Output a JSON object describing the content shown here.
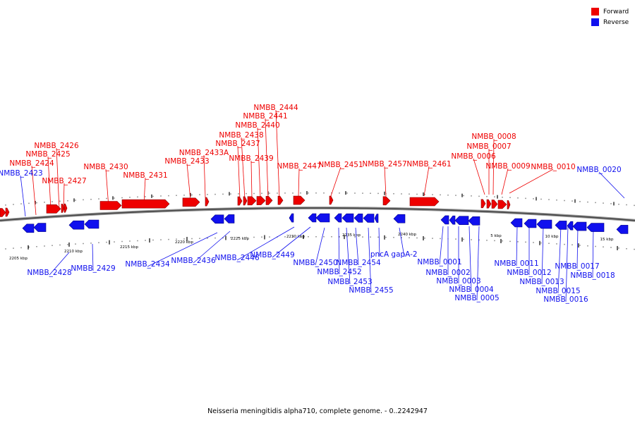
{
  "legend": {
    "forward_label": "Forward",
    "reverse_label": "Reverse",
    "forward_color": "#ee0000",
    "reverse_color": "#1010ee"
  },
  "caption": "Neisseria meningitidis alpha710, complete genome. - 0..2242947",
  "scale_labels": [
    "2205 kbp",
    "2210 kbp",
    "2215 kbp",
    "2220 kbp",
    "2225 kbp",
    "2230 kbp",
    "2235 kbp",
    "2240 kbp",
    "5 kbp",
    "10 kbp",
    "15 kbp"
  ],
  "forward_genes": [
    "NMBB_2424",
    "NMBB_2425",
    "NMBB_2426",
    "NMBB_2427",
    "NMBB_2430",
    "NMBB_2431",
    "NMBB_2433",
    "NMBB_2433A",
    "NMBB_2437",
    "NMBB_2438",
    "NMBB_2439",
    "NMBB_2440",
    "NMBB_2441",
    "NMBB_2444",
    "NMBB_2447",
    "NMBB_2451",
    "NMBB_2457",
    "NMBB_2461",
    "NMBB_0006",
    "NMBB_0007",
    "NMBB_0008",
    "NMBB_0009",
    "NMBB_0010"
  ],
  "reverse_genes": [
    "NMBB_2423",
    "NMBB_2428",
    "NMBB_2429",
    "NMBB_2434",
    "NMBB_2436",
    "NMBB_2446",
    "NMBB_2449",
    "NMBB_2450",
    "NMBB_2452",
    "NMBB_2453",
    "NMBB_2454",
    "NMBB_2455",
    "pncA",
    "gapA-2",
    "NMBB_0001",
    "NMBB_0002",
    "NMBB_0003",
    "NMBB_0004",
    "NMBB_0005",
    "NMBB_0011",
    "NMBB_0012",
    "NMBB_0013",
    "NMBB_0015",
    "NMBB_0016",
    "NMBB_0017",
    "NMBB_0018",
    "NMBB_0020"
  ]
}
